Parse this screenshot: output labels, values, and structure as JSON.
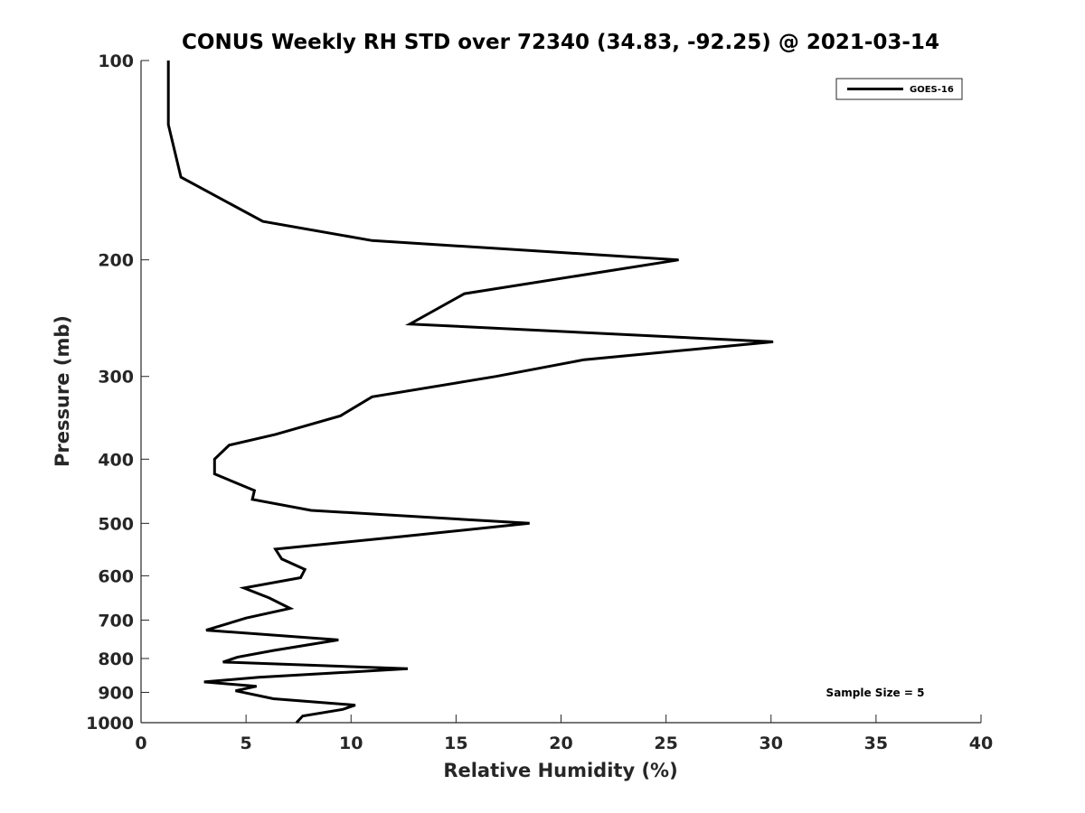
{
  "chart_data": {
    "type": "line",
    "title": "CONUS Weekly RH STD over 72340 (34.83, -92.25) @ 2021-03-14",
    "xlabel": "Relative Humidity (%)",
    "ylabel": "Pressure (mb)",
    "xlim": [
      0,
      40
    ],
    "ylim": [
      100,
      1000
    ],
    "yscale": "log",
    "y_reversed": true,
    "grid": false,
    "legend_position": "top-right",
    "xticks": [
      0,
      5,
      10,
      15,
      20,
      25,
      30,
      35,
      40
    ],
    "yticks": [
      100,
      200,
      300,
      400,
      500,
      600,
      700,
      800,
      900,
      1000
    ],
    "annotation": "Sample Size = 5",
    "series": [
      {
        "name": "GOES-16",
        "color": "#000000",
        "points": [
          [
            1.3,
            100
          ],
          [
            1.3,
            125
          ],
          [
            1.9,
            150
          ],
          [
            5.8,
            175
          ],
          [
            11,
            187
          ],
          [
            25.6,
            200
          ],
          [
            15.4,
            225
          ],
          [
            12.8,
            250
          ],
          [
            30.1,
            266
          ],
          [
            21.1,
            283
          ],
          [
            16.9,
            300
          ],
          [
            11,
            322
          ],
          [
            9.5,
            344
          ],
          [
            6.4,
            367
          ],
          [
            4.2,
            381
          ],
          [
            3.5,
            400
          ],
          [
            3.5,
            421
          ],
          [
            5.4,
            446
          ],
          [
            5.3,
            460
          ],
          [
            8.1,
            478
          ],
          [
            18.5,
            500
          ],
          [
            12.5,
            523
          ],
          [
            6.4,
            547
          ],
          [
            6.7,
            566
          ],
          [
            7.8,
            587
          ],
          [
            7.6,
            604
          ],
          [
            4.9,
            626
          ],
          [
            6.1,
            648
          ],
          [
            7.1,
            672
          ],
          [
            5,
            695
          ],
          [
            3.1,
            725
          ],
          [
            9.4,
            750
          ],
          [
            6.3,
            778
          ],
          [
            4.6,
            796
          ],
          [
            3.9,
            810
          ],
          [
            12.7,
            829
          ],
          [
            5.6,
            854
          ],
          [
            3,
            868
          ],
          [
            5.5,
            881
          ],
          [
            4.5,
            895
          ],
          [
            6.3,
            920
          ],
          [
            10.2,
            941
          ],
          [
            9.6,
            955
          ],
          [
            7.7,
            977
          ],
          [
            7.4,
            1000
          ]
        ]
      }
    ]
  }
}
